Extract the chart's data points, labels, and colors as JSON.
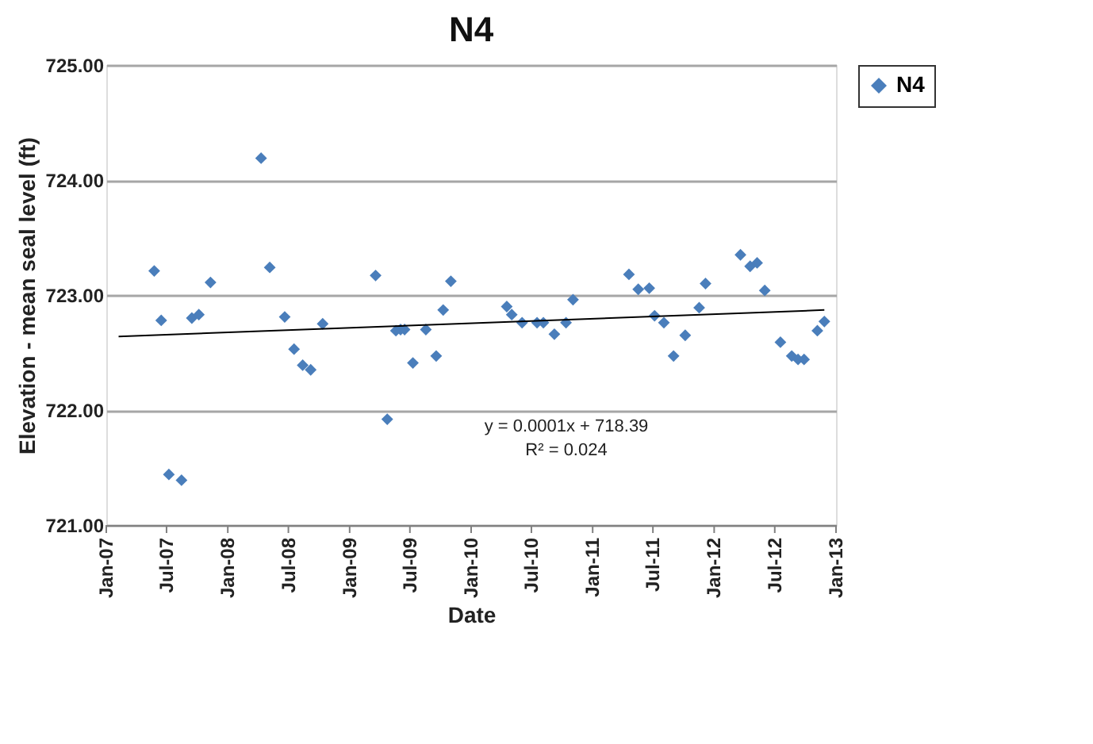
{
  "chart_data": {
    "type": "scatter",
    "title": "N4",
    "xlabel": "Date",
    "ylabel": "Elevation - mean seal level (ft)",
    "x": [
      "2007-05-25",
      "2007-06-15",
      "2007-07-08",
      "2007-08-15",
      "2007-09-15",
      "2007-10-06",
      "2007-11-10",
      "2008-04-10",
      "2008-05-06",
      "2008-06-20",
      "2008-07-18",
      "2008-08-13",
      "2008-09-06",
      "2008-10-12",
      "2009-03-20",
      "2009-04-24",
      "2009-05-20",
      "2009-06-03",
      "2009-06-15",
      "2009-07-10",
      "2009-08-18",
      "2009-09-18",
      "2009-10-09",
      "2009-11-01",
      "2010-04-18",
      "2010-05-03",
      "2010-06-03",
      "2010-07-18",
      "2010-08-06",
      "2010-09-08",
      "2010-10-13",
      "2010-11-03",
      "2011-04-20",
      "2011-05-18",
      "2011-06-20",
      "2011-07-06",
      "2011-08-03",
      "2011-09-01",
      "2011-10-06",
      "2011-11-17",
      "2011-12-06",
      "2012-03-20",
      "2012-04-18",
      "2012-05-09",
      "2012-06-01",
      "2012-07-18",
      "2012-08-21",
      "2012-09-09",
      "2012-09-27",
      "2012-11-06",
      "2012-11-27"
    ],
    "series": [
      {
        "name": "N4",
        "type": "scatter",
        "color": "#4a7ebb",
        "marker": "diamond",
        "values": [
          723.21,
          722.78,
          721.44,
          721.39,
          722.8,
          722.83,
          723.11,
          724.19,
          723.24,
          722.81,
          722.53,
          722.39,
          722.35,
          722.75,
          723.17,
          721.92,
          722.69,
          722.7,
          722.7,
          722.41,
          722.7,
          722.47,
          722.87,
          723.12,
          722.9,
          722.83,
          722.76,
          722.76,
          722.76,
          722.66,
          722.76,
          722.96,
          723.18,
          723.05,
          723.06,
          722.82,
          722.76,
          722.47,
          722.65,
          722.89,
          723.1,
          723.35,
          723.25,
          723.28,
          723.04,
          722.59,
          722.47,
          722.44,
          722.44,
          722.69,
          722.77
        ]
      },
      {
        "type": "line",
        "color": "#000000",
        "x": [
          "2007-02-07",
          "2012-11-27"
        ],
        "values": [
          722.64,
          722.87
        ]
      }
    ],
    "xlim": [
      "2007-01-01",
      "2013-01-01"
    ],
    "xticks": [
      {
        "value": "2007-01-01",
        "label": "Jan-07"
      },
      {
        "value": "2007-07-01",
        "label": "Jul-07"
      },
      {
        "value": "2008-01-01",
        "label": "Jan-08"
      },
      {
        "value": "2008-07-01",
        "label": "Jul-08"
      },
      {
        "value": "2009-01-01",
        "label": "Jan-09"
      },
      {
        "value": "2009-07-01",
        "label": "Jul-09"
      },
      {
        "value": "2010-01-01",
        "label": "Jan-10"
      },
      {
        "value": "2010-07-01",
        "label": "Jul-10"
      },
      {
        "value": "2011-01-01",
        "label": "Jan-11"
      },
      {
        "value": "2011-07-01",
        "label": "Jul-11"
      },
      {
        "value": "2012-01-01",
        "label": "Jan-12"
      },
      {
        "value": "2012-07-01",
        "label": "Jul-12"
      },
      {
        "value": "2013-01-01",
        "label": "Jan-13"
      }
    ],
    "ylim": [
      721,
      725
    ],
    "yticks": [
      {
        "value": 721,
        "label": "721.00"
      },
      {
        "value": 722,
        "label": "722.00"
      },
      {
        "value": 723,
        "label": "723.00"
      },
      {
        "value": 724,
        "label": "724.00"
      },
      {
        "value": 725,
        "label": "725.00"
      }
    ],
    "grid": "y",
    "legend": "top right",
    "annotations": [
      "y = 0.0001x + 718.39",
      "R² = 0.024"
    ]
  }
}
